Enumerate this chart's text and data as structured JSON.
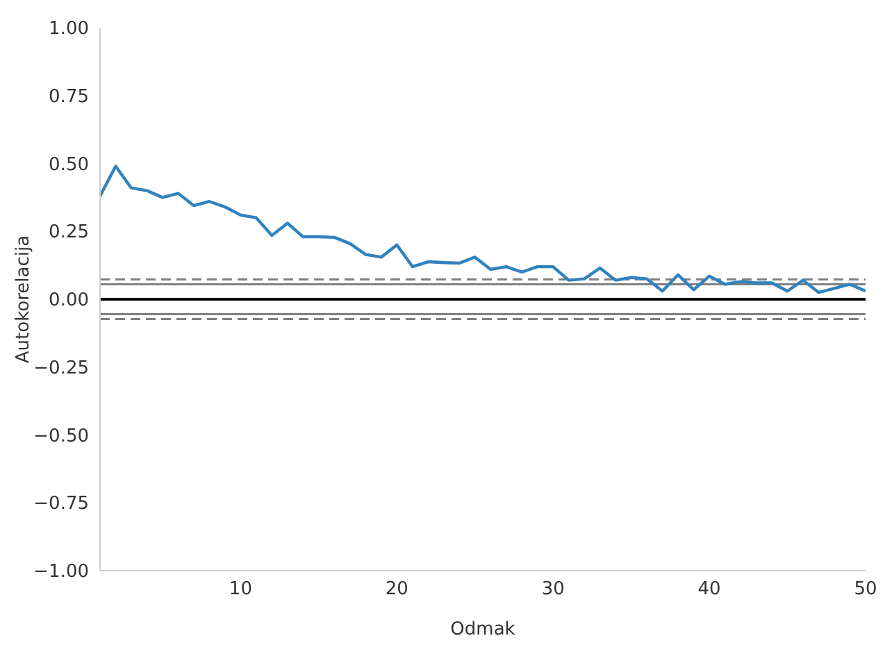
{
  "chart_data": {
    "type": "line",
    "xlabel": "Odmak",
    "ylabel": "Autokorelacija",
    "x": [
      1,
      2,
      3,
      4,
      5,
      6,
      7,
      8,
      9,
      10,
      11,
      12,
      13,
      14,
      15,
      16,
      17,
      18,
      19,
      20,
      21,
      22,
      23,
      24,
      25,
      26,
      27,
      28,
      29,
      30,
      31,
      32,
      33,
      34,
      35,
      36,
      37,
      38,
      39,
      40,
      41,
      42,
      43,
      44,
      45,
      46,
      47,
      48,
      49,
      50
    ],
    "series": [
      {
        "color": "#3182bd",
        "values": [
          0.38,
          0.49,
          0.41,
          0.4,
          0.375,
          0.39,
          0.345,
          0.36,
          0.34,
          0.31,
          0.3,
          0.235,
          0.28,
          0.23,
          0.23,
          0.228,
          0.205,
          0.165,
          0.155,
          0.2,
          0.12,
          0.138,
          0.135,
          0.133,
          0.155,
          0.11,
          0.12,
          0.1,
          0.12,
          0.12,
          0.07,
          0.075,
          0.115,
          0.07,
          0.08,
          0.075,
          0.03,
          0.09,
          0.035,
          0.085,
          0.055,
          0.065,
          0.06,
          0.06,
          0.03,
          0.07,
          0.025,
          0.04,
          0.055,
          0.03
        ]
      }
    ],
    "xlim": [
      1,
      50
    ],
    "xticks": [
      10,
      20,
      30,
      40,
      50
    ],
    "ylim": [
      -1,
      1
    ],
    "yticks": [
      {
        "value": -1,
        "label": "−1.00"
      },
      {
        "value": -0.75,
        "label": "−0.75"
      },
      {
        "value": -0.5,
        "label": "−0.50"
      },
      {
        "value": -0.25,
        "label": "−0.25"
      },
      {
        "value": 0,
        "label": "0.00"
      },
      {
        "value": 0.25,
        "label": "0.25"
      },
      {
        "value": 0.5,
        "label": "0.50"
      },
      {
        "value": 0.75,
        "label": "0.75"
      },
      {
        "value": 1,
        "label": "1.00"
      }
    ],
    "ref_lines": [
      {
        "axis": "y",
        "value": 0.073,
        "color": "#808080",
        "line_style": "dashed"
      },
      {
        "axis": "y",
        "value": 0.055,
        "color": "#808080",
        "line_style": "solid"
      },
      {
        "axis": "y",
        "value": 0,
        "color": "#000000",
        "line_style": "solid"
      },
      {
        "axis": "y",
        "value": -0.055,
        "color": "#808080",
        "line_style": "solid"
      },
      {
        "axis": "y",
        "value": -0.073,
        "color": "#808080",
        "line_style": "dashed"
      }
    ],
    "grid": false,
    "legend": false,
    "marker": "none",
    "line_style": "solid"
  }
}
